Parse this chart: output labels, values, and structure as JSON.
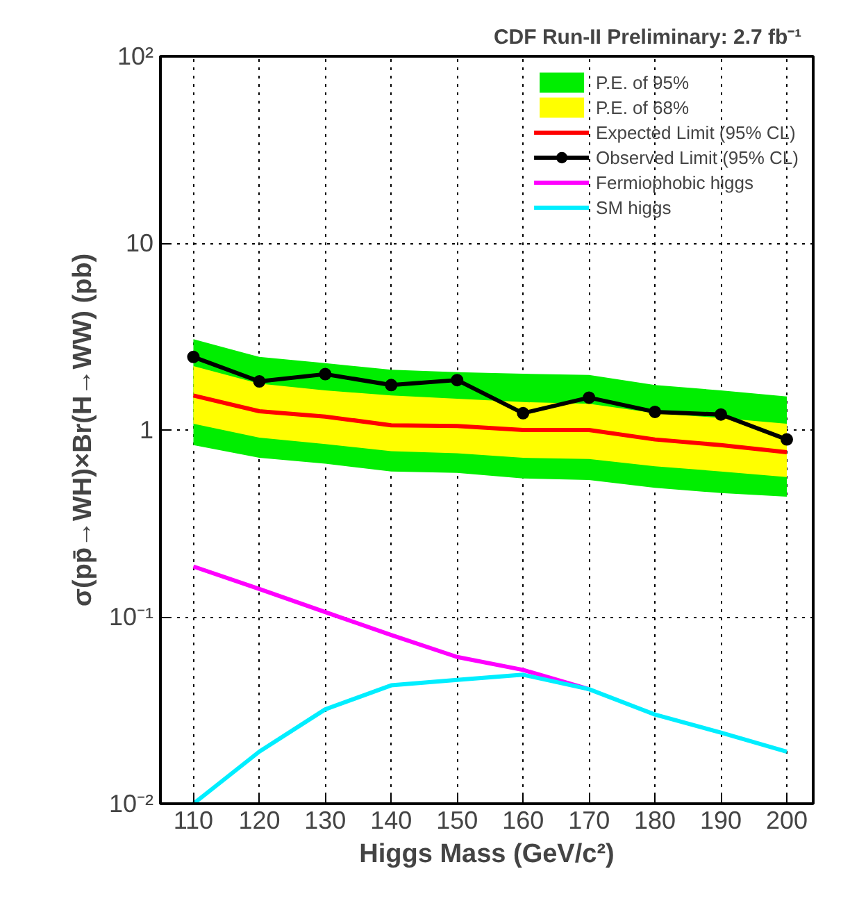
{
  "chart_data": {
    "type": "line",
    "title": "CDF Run-II Preliminary:   2.7 fb⁻¹",
    "xlabel": "Higgs Mass (GeV/c²)",
    "ylabel": "σ(pp̄→WH)×Br(H→WW) (pb)",
    "x": [
      110,
      120,
      130,
      140,
      150,
      160,
      170,
      180,
      190,
      200
    ],
    "series": [
      {
        "name": "P.E. of 95%",
        "color": "#00ee00",
        "values": [
          null,
          null,
          null,
          null,
          null,
          null,
          null,
          null,
          null,
          null
        ],
        "lower": [
          0.83,
          0.71,
          0.66,
          0.6,
          0.59,
          0.55,
          0.54,
          0.49,
          0.46,
          0.44
        ],
        "upper": [
          3.06,
          2.46,
          2.28,
          2.1,
          2.04,
          2.0,
          1.97,
          1.74,
          1.63,
          1.51
        ]
      },
      {
        "name": "P.E. of 68%",
        "color": "#ffff00",
        "values": [
          null,
          null,
          null,
          null,
          null,
          null,
          null,
          null,
          null,
          null
        ],
        "lower": [
          1.08,
          0.91,
          0.84,
          0.77,
          0.75,
          0.71,
          0.7,
          0.64,
          0.6,
          0.56
        ],
        "upper": [
          2.2,
          1.77,
          1.63,
          1.53,
          1.47,
          1.41,
          1.38,
          1.23,
          1.16,
          1.08
        ]
      },
      {
        "name": "Expected Limit (95% CL)",
        "type": "line",
        "color": "#ff0000",
        "values": [
          1.53,
          1.26,
          1.18,
          1.06,
          1.05,
          1.0,
          1.0,
          0.89,
          0.83,
          0.76
        ]
      },
      {
        "name": "Observed Limit (95% CL)",
        "type": "line",
        "color": "#000000",
        "marker": "circle",
        "values": [
          2.46,
          1.82,
          1.99,
          1.74,
          1.85,
          1.23,
          1.49,
          1.25,
          1.21,
          0.89
        ]
      },
      {
        "name": "Fermiophobic higgs",
        "type": "line",
        "color": "#ff00ff",
        "values": [
          0.186,
          0.141,
          0.106,
          0.08,
          0.061,
          0.052,
          0.041,
          null,
          null,
          null
        ]
      },
      {
        "name": "SM higgs",
        "type": "line",
        "color": "#00eeff",
        "values": [
          0.01,
          0.019,
          0.032,
          0.043,
          0.046,
          0.049,
          0.041,
          0.03,
          0.024,
          0.019
        ]
      }
    ],
    "log": "y",
    "xlim": [
      105,
      204
    ],
    "ylim": [
      0.01,
      100
    ],
    "xticks": [
      110,
      120,
      130,
      140,
      150,
      160,
      170,
      180,
      190,
      200
    ],
    "yticks": [
      {
        "value": 0.01,
        "label": "10⁻²"
      },
      {
        "value": 0.1,
        "label": "10⁻¹"
      },
      1,
      10,
      {
        "value": 100,
        "label": "10²"
      }
    ],
    "grid": true,
    "legend": "top right",
    "line_style": "solid"
  }
}
